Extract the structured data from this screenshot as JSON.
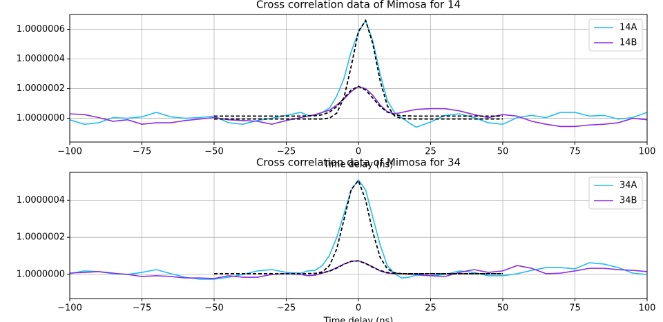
{
  "chart_data": [
    {
      "type": "line",
      "title": "Cross correlation data of Mimosa for 14",
      "xlabel": "Time delay (ns)",
      "x": [
        -100,
        -95,
        -90,
        -85,
        -80,
        -75,
        -70,
        -65,
        -60,
        -55,
        -50,
        -45,
        -40,
        -35,
        -30,
        -25,
        -20,
        -17.5,
        -15,
        -12.5,
        -10,
        -7.5,
        -5,
        -2.5,
        0,
        2.5,
        5,
        7.5,
        10,
        12.5,
        15,
        17.5,
        20,
        25,
        30,
        35,
        40,
        45,
        50,
        55,
        60,
        65,
        70,
        75,
        80,
        85,
        90,
        95,
        100
      ],
      "series": [
        {
          "name": "14A",
          "color": "#1fbcf2",
          "values": [
            0.99999999,
            0.99999996,
            0.99999997,
            1.000000005,
            1,
            1.00000001,
            1.00000004,
            1.00000001,
            1,
            1.000000005,
            1.000000015,
            0.99999997,
            0.99999996,
            0.999999985,
            1,
            1.00000002,
            1.00000004,
            1.00000002,
            1.00000002,
            1.00000004,
            1.00000007,
            1.00000015,
            1.00000027,
            1.00000045,
            1.00000058,
            1.00000066,
            1.00000052,
            1.0000003,
            1.00000012,
            1.00000004,
            1.000000005,
            0.99999997,
            0.99999994,
            0.999999975,
            1.00000002,
            1.00000003,
            1.000000005,
            0.99999997,
            0.99999996,
            1.000000005,
            1.00000002,
            1.000000005,
            1.00000004,
            1.00000004,
            1.000000015,
            1.00000002,
            0.999999995,
            1.000000005,
            1.00000004
          ]
        },
        {
          "name": "14B",
          "color": "#8a2be2",
          "values": [
            1.00000003,
            1.000000025,
            1.000000005,
            0.99999998,
            0.99999999,
            0.99999996,
            0.99999997,
            0.99999997,
            0.999999985,
            0.999999995,
            1.000000005,
            0.99999999,
            0.999999985,
            0.99999998,
            0.99999996,
            0.999999985,
            1.000000005,
            1.000000015,
            1.000000025,
            1.00000004,
            1.000000055,
            1.00000009,
            1.00000013,
            1.00000018,
            1.000000215,
            1.0000002,
            1.000000155,
            1.00000009,
            1.000000045,
            1.00000003,
            1.00000004,
            1.00000005,
            1.00000006,
            1.000000065,
            1.000000065,
            1.00000005,
            1.000000025,
            1.000000005,
            1.000000025,
            1.000000015,
            0.99999998,
            0.99999996,
            0.999999945,
            0.999999945,
            0.999999955,
            0.99999996,
            0.99999997,
            1,
            0.99999999
          ]
        }
      ],
      "fit_x": [
        -50,
        -45,
        -40,
        -35,
        -30,
        -25,
        -20,
        -15,
        -12.5,
        -10,
        -7.5,
        -5,
        -2.5,
        0,
        2.5,
        5,
        7.5,
        10,
        12.5,
        15,
        20,
        25,
        30,
        35,
        40,
        45,
        50
      ],
      "fits": [
        {
          "color": "#000000",
          "values": [
            0.999999995,
            0.999999995,
            0.999999995,
            0.999999995,
            0.999999995,
            0.999999995,
            0.999999995,
            0.999999995,
            0.999999995,
            1.000000002,
            1.000000035,
            1.00000014,
            1.000000351,
            1.000000586,
            1.00000066,
            1.000000501,
            1.000000255,
            1.000000085,
            1.000000016,
            0.999999998,
            0.999999995,
            0.999999995,
            0.999999995,
            0.999999995,
            0.999999995,
            0.999999995,
            0.999999995
          ]
        },
        {
          "color": "#000000",
          "values": [
            1.000000015,
            1.000000015,
            1.000000015,
            1.000000015,
            1.000000015,
            1.000000015,
            1.000000015,
            1.000000017,
            1.000000024,
            1.000000042,
            1.00000008,
            1.000000136,
            1.000000191,
            1.000000215,
            1.000000191,
            1.000000136,
            1.00000008,
            1.000000042,
            1.000000024,
            1.000000017,
            1.000000015,
            1.000000015,
            1.000000015,
            1.000000015,
            1.000000015,
            1.000000015,
            1.000000015
          ]
        }
      ],
      "xlim": [
        -100,
        100
      ],
      "xticks": [
        {
          "value": -100,
          "label": "−100"
        },
        {
          "value": -75,
          "label": "−75"
        },
        {
          "value": -50,
          "label": "−50"
        },
        {
          "value": -25,
          "label": "−25"
        },
        0,
        25,
        50,
        75,
        100
      ],
      "ylim": [
        0.99999984,
        1.0000007
      ],
      "yticks": [
        {
          "value": 1,
          "label": "1.0000000"
        },
        1.0000002,
        1.0000004,
        1.0000006
      ],
      "grid": true,
      "legend": "upper-right"
    },
    {
      "type": "line",
      "title": "Cross correlation data of Mimosa for 34",
      "xlabel": "Time delay (ns)",
      "x": [
        -100,
        -95,
        -90,
        -85,
        -80,
        -75,
        -70,
        -65,
        -60,
        -55,
        -50,
        -45,
        -40,
        -35,
        -30,
        -25,
        -20,
        -17.5,
        -15,
        -12.5,
        -10,
        -7.5,
        -5,
        -2.5,
        0,
        2.5,
        5,
        7.5,
        10,
        12.5,
        15,
        17.5,
        20,
        25,
        30,
        35,
        40,
        45,
        50,
        55,
        60,
        65,
        70,
        75,
        80,
        85,
        90,
        95,
        100
      ],
      "series": [
        {
          "name": "34A",
          "color": "#1fbcf2",
          "values": [
            1.000000004,
            1.000000019,
            1.000000015,
            1.000000004,
            1,
            1.000000011,
            1.000000026,
            1.000000004,
            0.999999985,
            0.999999974,
            0.999999974,
            0.999999985,
            1,
            1.000000019,
            1.000000026,
            1.000000011,
            1.000000007,
            1.000000019,
            1.000000022,
            1.000000048,
            1.000000104,
            1.0000002,
            1.000000326,
            1.000000455,
            1.00000051,
            1.000000455,
            1.000000307,
            1.00000016,
            1.000000048,
            1.000000004,
            0.999999981,
            0.999999985,
            0.999999996,
            0.999999993,
            1,
            1.000000019,
            1.000000011,
            0.999999993,
            0.999999993,
            1.000000004,
            1.000000022,
            1.000000037,
            1.000000037,
            1.00000003,
            1.000000063,
            1.000000056,
            1.000000037,
            1.000000007,
            1
          ]
        },
        {
          "name": "34B",
          "color": "#8a2be2",
          "values": [
            1.000000007,
            1.000000011,
            1.000000015,
            1.000000007,
            1,
            0.999999989,
            0.999999993,
            0.999999989,
            0.999999981,
            0.999999981,
            0.999999978,
            0.999999993,
            0.999999985,
            0.999999985,
            1,
            1.000000004,
            1,
            0.999999993,
            0.999999996,
            1.000000007,
            1.000000019,
            1.000000037,
            1.000000056,
            1.00000007,
            1.000000074,
            1.000000059,
            1.000000041,
            1.000000019,
            1.000000007,
            1.000000004,
            1.000000004,
            1,
            1,
            0.999999993,
            0.999999989,
            1.000000011,
            1.000000026,
            1.000000011,
            1.000000019,
            1.000000048,
            1.000000033,
            1.000000004,
            1.000000007,
            1.000000019,
            1.000000033,
            1.000000033,
            1.000000026,
            1.000000022,
            1.000000015
          ]
        }
      ],
      "fit_x": [
        -50,
        -45,
        -40,
        -35,
        -30,
        -25,
        -20,
        -15,
        -12.5,
        -10,
        -7.5,
        -5,
        -2.5,
        0,
        2.5,
        5,
        7.5,
        10,
        12.5,
        15,
        20,
        25,
        30,
        35,
        40,
        45,
        50
      ],
      "fits": [
        {
          "color": "#000000",
          "values": [
            1.000000004,
            1.000000004,
            1.000000004,
            1.000000004,
            1.000000004,
            1.000000004,
            1.000000004,
            1.000000005,
            1.000000014,
            1.000000048,
            1.000000138,
            1.000000296,
            1.000000458,
            1.000000506,
            1.0000004,
            1.000000227,
            1.000000093,
            1.00000003,
            1.000000009,
            1.000000004,
            1.000000004,
            1.000000004,
            1.000000004,
            1.000000004,
            1.000000004,
            1.000000004,
            1.000000004
          ]
        },
        {
          "color": "#000000",
          "values": [
            1.000000004,
            1.000000004,
            1.000000004,
            1.000000004,
            1.000000004,
            1.000000004,
            1.000000004,
            1.000000005,
            1.000000009,
            1.000000018,
            1.000000034,
            1.000000055,
            1.000000071,
            1.000000073,
            1.000000059,
            1.000000038,
            1.000000021,
            1.00000001,
            1.000000006,
            1.000000004,
            1.000000004,
            1.000000004,
            1.000000004,
            1.000000004,
            1.000000004,
            1.000000004,
            1.000000004
          ]
        }
      ],
      "xlim": [
        -100,
        100
      ],
      "xticks": [
        {
          "value": -100,
          "label": "−100"
        },
        {
          "value": -75,
          "label": "−75"
        },
        {
          "value": -50,
          "label": "−50"
        },
        {
          "value": -25,
          "label": "−25"
        },
        0,
        25,
        50,
        75,
        100
      ],
      "ylim": [
        0.99999987,
        1.00000055
      ],
      "yticks": [
        {
          "value": 1,
          "label": "1.0000000"
        },
        1.0000002,
        1.0000004
      ],
      "grid": true,
      "legend": "upper-right"
    }
  ]
}
